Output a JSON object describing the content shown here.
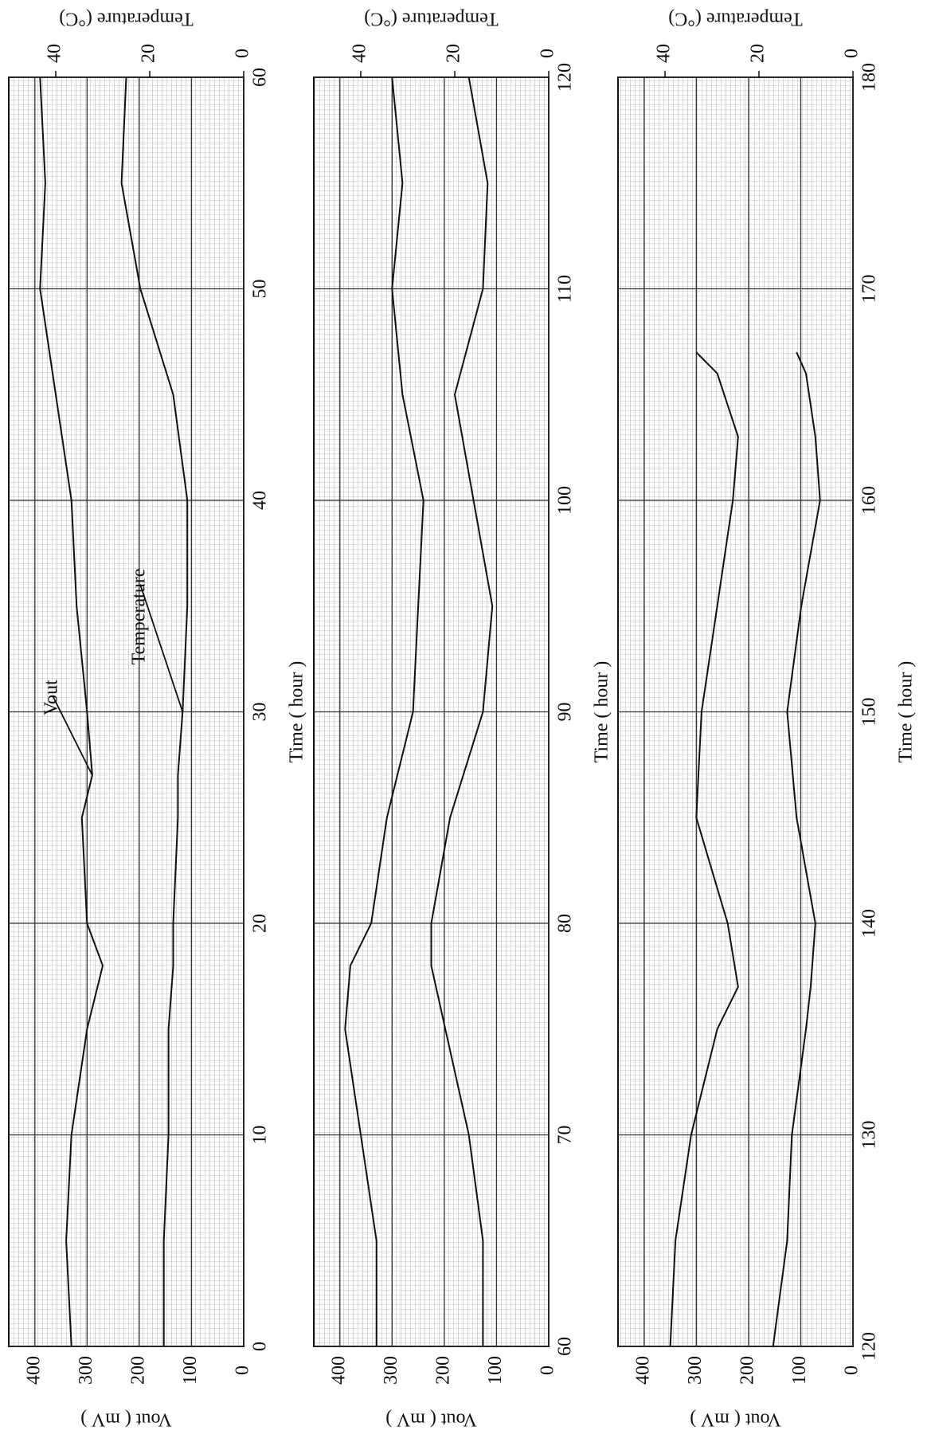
{
  "chart_data": [
    {
      "type": "line",
      "xlabel": "Time ( hour )",
      "ylabel": "Vout ( mV )",
      "y2label": "Temperature (°C)",
      "x": [
        0,
        5,
        10,
        15,
        18,
        20,
        25,
        27,
        30,
        35,
        40,
        45,
        50,
        55,
        60
      ],
      "xlim": [
        0,
        60
      ],
      "xticks": [
        0,
        10,
        20,
        30,
        40,
        50,
        60
      ],
      "ylim": [
        0,
        450
      ],
      "yticks": [
        0,
        100,
        200,
        300,
        400
      ],
      "y2lim": [
        0,
        50
      ],
      "y2ticks": [
        0,
        20,
        40
      ],
      "series": [
        {
          "name": "Vout",
          "color": "#111111",
          "axis": "y",
          "values": [
            330,
            340,
            330,
            300,
            270,
            300,
            310,
            290,
            300,
            320,
            330,
            360,
            390,
            380,
            390
          ]
        },
        {
          "name": "Temperature",
          "color": "#111111",
          "axis": "y2",
          "values": [
            17,
            17,
            16,
            16,
            15,
            15,
            14,
            14,
            13,
            12,
            12,
            15,
            22,
            26,
            25
          ]
        }
      ]
    },
    {
      "type": "line",
      "xlabel": "Time ( hour )",
      "ylabel": "Vout ( mV )",
      "y2label": "Temperature (°C)",
      "x": [
        60,
        65,
        70,
        75,
        78,
        80,
        85,
        90,
        95,
        100,
        105,
        110,
        115,
        120
      ],
      "xlim": [
        60,
        120
      ],
      "xticks": [
        60,
        70,
        80,
        90,
        100,
        110,
        120
      ],
      "ylim": [
        0,
        450
      ],
      "yticks": [
        0,
        100,
        200,
        300,
        400
      ],
      "y2lim": [
        0,
        50
      ],
      "y2ticks": [
        0,
        20,
        40
      ],
      "series": [
        {
          "color": "#111111",
          "axis": "y",
          "values": [
            330,
            330,
            360,
            390,
            380,
            340,
            310,
            260,
            250,
            240,
            280,
            300,
            280,
            300
          ]
        },
        {
          "color": "#111111",
          "axis": "y2",
          "values": [
            14,
            14,
            17,
            22,
            25,
            25,
            21,
            14,
            12,
            16,
            20,
            14,
            13,
            17
          ]
        }
      ]
    },
    {
      "type": "line",
      "xlabel": "Time ( hour )",
      "ylabel": "Vout ( mV )",
      "y2label": "Temperature (°C)",
      "x": [
        120,
        125,
        130,
        135,
        137,
        140,
        145,
        150,
        155,
        160,
        163,
        166,
        167
      ],
      "xlim": [
        120,
        180
      ],
      "xticks": [
        120,
        130,
        140,
        150,
        160,
        170,
        180
      ],
      "ylim": [
        0,
        450
      ],
      "yticks": [
        0,
        100,
        200,
        300,
        400
      ],
      "y2lim": [
        0,
        50
      ],
      "y2ticks": [
        0,
        20,
        40
      ],
      "series": [
        {
          "color": "#111111",
          "axis": "y",
          "values": [
            350,
            340,
            310,
            260,
            220,
            240,
            300,
            290,
            260,
            230,
            220,
            260,
            300
          ]
        },
        {
          "color": "#111111",
          "axis": "y2",
          "values": [
            17,
            14,
            13,
            10,
            9,
            8,
            12,
            14,
            11,
            7,
            8,
            10,
            12
          ]
        }
      ]
    }
  ]
}
